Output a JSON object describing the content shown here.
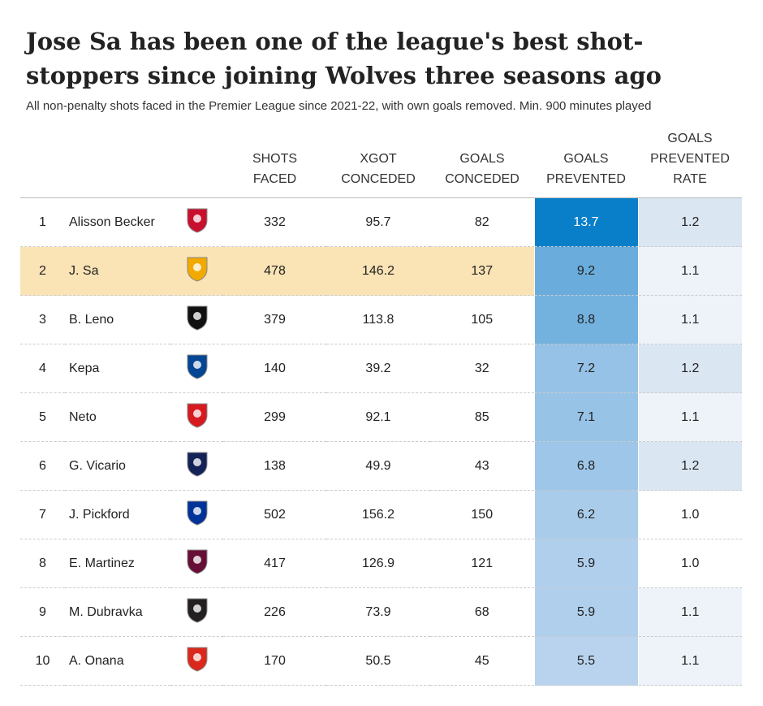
{
  "header": {
    "title": "Jose Sa has been one of the league's best shot-stoppers since joining Wolves three seasons ago",
    "subtitle": "All non-penalty shots faced in the Premier League since 2021-22, with own goals removed. Min. 900 minutes played"
  },
  "table": {
    "columns": [
      "SHOTS FACED",
      "XGOT CONCEDED",
      "GOALS CONCEDED",
      "GOALS PREVENTED",
      "GOALS PREVENTED RATE"
    ],
    "rows": [
      [
        "1",
        "Alisson Becker",
        "332",
        "95.7",
        "82",
        "13.7",
        "1.2"
      ],
      [
        "2",
        "J. Sa",
        "478",
        "146.2",
        "137",
        "9.2",
        "1.1"
      ],
      [
        "3",
        "B. Leno",
        "379",
        "113.8",
        "105",
        "8.8",
        "1.1"
      ],
      [
        "4",
        "Kepa",
        "140",
        "39.2",
        "32",
        "7.2",
        "1.2"
      ],
      [
        "5",
        "Neto",
        "299",
        "92.1",
        "85",
        "7.1",
        "1.1"
      ],
      [
        "6",
        "G. Vicario",
        "138",
        "49.9",
        "43",
        "6.8",
        "1.2"
      ],
      [
        "7",
        "J. Pickford",
        "502",
        "156.2",
        "150",
        "6.2",
        "1.0"
      ],
      [
        "8",
        "E. Martinez",
        "417",
        "126.9",
        "121",
        "5.9",
        "1.0"
      ],
      [
        "9",
        "M. Dubravka",
        "226",
        "73.9",
        "68",
        "5.9",
        "1.1"
      ],
      [
        "10",
        "A. Onana",
        "170",
        "50.5",
        "45",
        "5.5",
        "1.1"
      ]
    ]
  }
}
